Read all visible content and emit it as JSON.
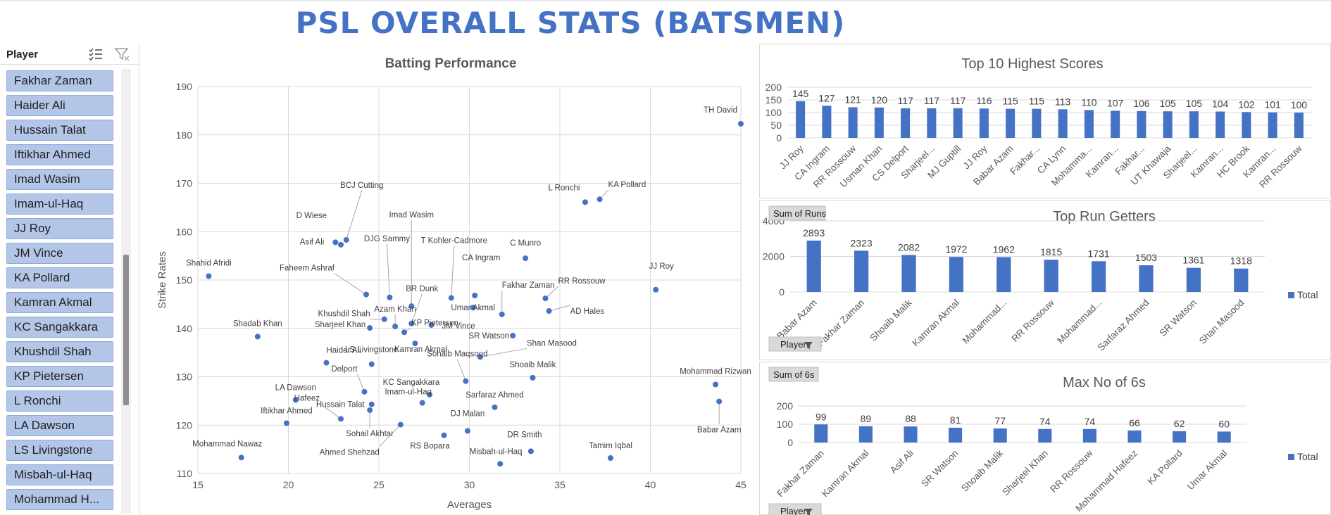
{
  "page_title": "PSL OVERALL STATS (BATSMEN)",
  "slicer": {
    "title": "Player",
    "items": [
      "Fakhar Zaman",
      "Haider Ali",
      "Hussain Talat",
      "Iftikhar Ahmed",
      "Imad Wasim",
      "Imam-ul-Haq",
      "JJ Roy",
      "JM Vince",
      "KA Pollard",
      "Kamran Akmal",
      "KC Sangakkara",
      "Khushdil Shah",
      "KP Pietersen",
      "L Ronchi",
      "LA Dawson",
      "LS Livingstone",
      "Misbah-ul-Haq",
      "Mohammad H..."
    ]
  },
  "chart_data": [
    {
      "type": "scatter",
      "title": "Batting Performance",
      "xlabel": "Averages",
      "ylabel": "Strike Rates",
      "xlim": [
        15,
        45
      ],
      "ylim": [
        110,
        190
      ],
      "xticks": [
        15,
        20,
        25,
        30,
        35,
        40,
        45
      ],
      "yticks": [
        110,
        120,
        130,
        140,
        150,
        160,
        170,
        180,
        190
      ],
      "grid": true,
      "color": "#4472C4",
      "points": [
        {
          "label": "TH David",
          "x": 45.0,
          "y": 182.3
        },
        {
          "label": "KA Pollard",
          "x": 37.2,
          "y": 166.7
        },
        {
          "label": "L Ronchi",
          "x": 36.4,
          "y": 166.1
        },
        {
          "label": "BCJ Cutting",
          "x": 23.2,
          "y": 158.3
        },
        {
          "label": "D Wiese",
          "x": 22.9,
          "y": 157.3
        },
        {
          "label": "Asif Ali",
          "x": 22.6,
          "y": 157.8
        },
        {
          "label": "C Munro",
          "x": 33.1,
          "y": 154.5
        },
        {
          "label": "Shahid Afridi",
          "x": 15.6,
          "y": 150.8
        },
        {
          "label": "JJ Roy",
          "x": 40.3,
          "y": 148.0
        },
        {
          "label": "Faheem Ashraf",
          "x": 24.3,
          "y": 147.0
        },
        {
          "label": "DJG Sammy",
          "x": 25.6,
          "y": 146.4
        },
        {
          "label": "T Kohler-Cadmore",
          "x": 29.0,
          "y": 146.3
        },
        {
          "label": "CA Ingram",
          "x": 30.3,
          "y": 146.8
        },
        {
          "label": "RR Rossouw",
          "x": 34.2,
          "y": 146.2
        },
        {
          "label": "Imad Wasim",
          "x": 26.8,
          "y": 144.6
        },
        {
          "label": "Umar Akmal",
          "x": 30.2,
          "y": 144.3
        },
        {
          "label": "AD Hales",
          "x": 34.4,
          "y": 143.6
        },
        {
          "label": "Fakhar Zaman",
          "x": 31.8,
          "y": 142.9
        },
        {
          "label": "Khushdil Shah",
          "x": 25.3,
          "y": 141.9
        },
        {
          "label": "Azam Khan",
          "x": 25.9,
          "y": 140.4
        },
        {
          "label": "BR Dunk",
          "x": 26.8,
          "y": 141.0
        },
        {
          "label": "JM Vince",
          "x": 27.9,
          "y": 140.7
        },
        {
          "label": "KP Pietersen",
          "x": 26.4,
          "y": 139.2
        },
        {
          "label": "Sharjeel Khan",
          "x": 24.5,
          "y": 140.1
        },
        {
          "label": "Shadab Khan",
          "x": 18.3,
          "y": 138.3
        },
        {
          "label": "SR Watson",
          "x": 32.4,
          "y": 138.5
        },
        {
          "label": "Kamran Akmal",
          "x": 27.0,
          "y": 136.9
        },
        {
          "label": "Shan Masood",
          "x": 30.6,
          "y": 134.1
        },
        {
          "label": "Haider Ali",
          "x": 22.1,
          "y": 132.9
        },
        {
          "label": "LS Livingstone",
          "x": 24.6,
          "y": 132.6
        },
        {
          "label": "Shoaib Malik",
          "x": 33.5,
          "y": 129.8
        },
        {
          "label": "Sohaib Maqsood",
          "x": 29.8,
          "y": 129.1
        },
        {
          "label": "Mohammad Rizwan",
          "x": 43.6,
          "y": 128.4
        },
        {
          "label": "Delport",
          "x": 24.2,
          "y": 126.9
        },
        {
          "label": "KC Sangakkara",
          "x": 27.8,
          "y": 126.3
        },
        {
          "label": "LA Dawson",
          "x": 20.4,
          "y": 125.2
        },
        {
          "label": "Babar Azam",
          "x": 43.8,
          "y": 124.9
        },
        {
          "label": "Imam-ul-Haq",
          "x": 27.4,
          "y": 124.6
        },
        {
          "label": "Hussain Talat",
          "x": 24.6,
          "y": 124.3
        },
        {
          "label": "Sarfaraz Ahmed",
          "x": 31.4,
          "y": 123.7
        },
        {
          "label": "Sohail Akhtar",
          "x": 24.5,
          "y": 123.1
        },
        {
          "label": "Hafeez",
          "x": 22.9,
          "y": 121.3
        },
        {
          "label": "Iftikhar Ahmed",
          "x": 19.9,
          "y": 120.4
        },
        {
          "label": "Ahmed Shehzad",
          "x": 26.2,
          "y": 120.1
        },
        {
          "label": "DJ Malan",
          "x": 29.9,
          "y": 118.8
        },
        {
          "label": "RS Bopara",
          "x": 28.6,
          "y": 117.9
        },
        {
          "label": "DR Smith",
          "x": 33.4,
          "y": 114.6
        },
        {
          "label": "Mohammad Nawaz",
          "x": 17.4,
          "y": 113.3
        },
        {
          "label": "Tamim Iqbal",
          "x": 37.8,
          "y": 113.2
        },
        {
          "label": "Misbah-ul-Haq",
          "x": 31.7,
          "y": 112.0
        }
      ]
    },
    {
      "type": "bar",
      "title": "Top 10 Highest Scores",
      "ylim": [
        0,
        200
      ],
      "yticks": [
        0,
        50,
        100,
        150,
        200
      ],
      "color": "#4472C4",
      "categories": [
        "JJ Roy",
        "CA Ingram",
        "RR Rossouw",
        "Usman Khan",
        "CS Delport",
        "Sharjeel...",
        "MJ Guptill",
        "JJ Roy",
        "Babar Azam",
        "Fakhar...",
        "CA Lynn",
        "Mohamma...",
        "Kamran...",
        "Fakhar...",
        "UT Khawaja",
        "Sharjeel...",
        "Kamran...",
        "HC Brook",
        "Kamran...",
        "RR Rossouw"
      ],
      "values": [
        145,
        127,
        121,
        120,
        117,
        117,
        117,
        116,
        115,
        115,
        113,
        110,
        107,
        106,
        105,
        105,
        104,
        102,
        101,
        100
      ]
    },
    {
      "type": "bar",
      "title": "Top Run Getters",
      "field_button": "Sum of Runs",
      "axis_button": "Player",
      "legend": "Total",
      "ylim": [
        0,
        4000
      ],
      "yticks": [
        0,
        2000,
        4000
      ],
      "color": "#4472C4",
      "categories": [
        "Babar Azam",
        "Fakhar Zaman",
        "Shoaib Malik",
        "Kamran Akmal",
        "Mohammad...",
        "RR Rossouw",
        "Mohammad...",
        "Sarfaraz Ahmed",
        "SR Watson",
        "Shan Masood"
      ],
      "values": [
        2893,
        2323,
        2082,
        1972,
        1962,
        1815,
        1731,
        1503,
        1361,
        1318
      ]
    },
    {
      "type": "bar",
      "title": "Max No of 6s",
      "field_button": "Sum of 6s",
      "axis_button": "Player",
      "legend": "Total",
      "ylim": [
        0,
        200
      ],
      "yticks": [
        0,
        100,
        200
      ],
      "color": "#4472C4",
      "categories": [
        "Fakhar Zaman",
        "Kamran Akmal",
        "Asif Ali",
        "SR Watson",
        "Shoaib Malik",
        "Sharjeel Khan",
        "RR Rossouw",
        "Mohammad Hafeez",
        "KA Pollard",
        "Umar Akmal"
      ],
      "values": [
        99,
        89,
        88,
        81,
        77,
        74,
        74,
        66,
        62,
        60
      ]
    }
  ]
}
